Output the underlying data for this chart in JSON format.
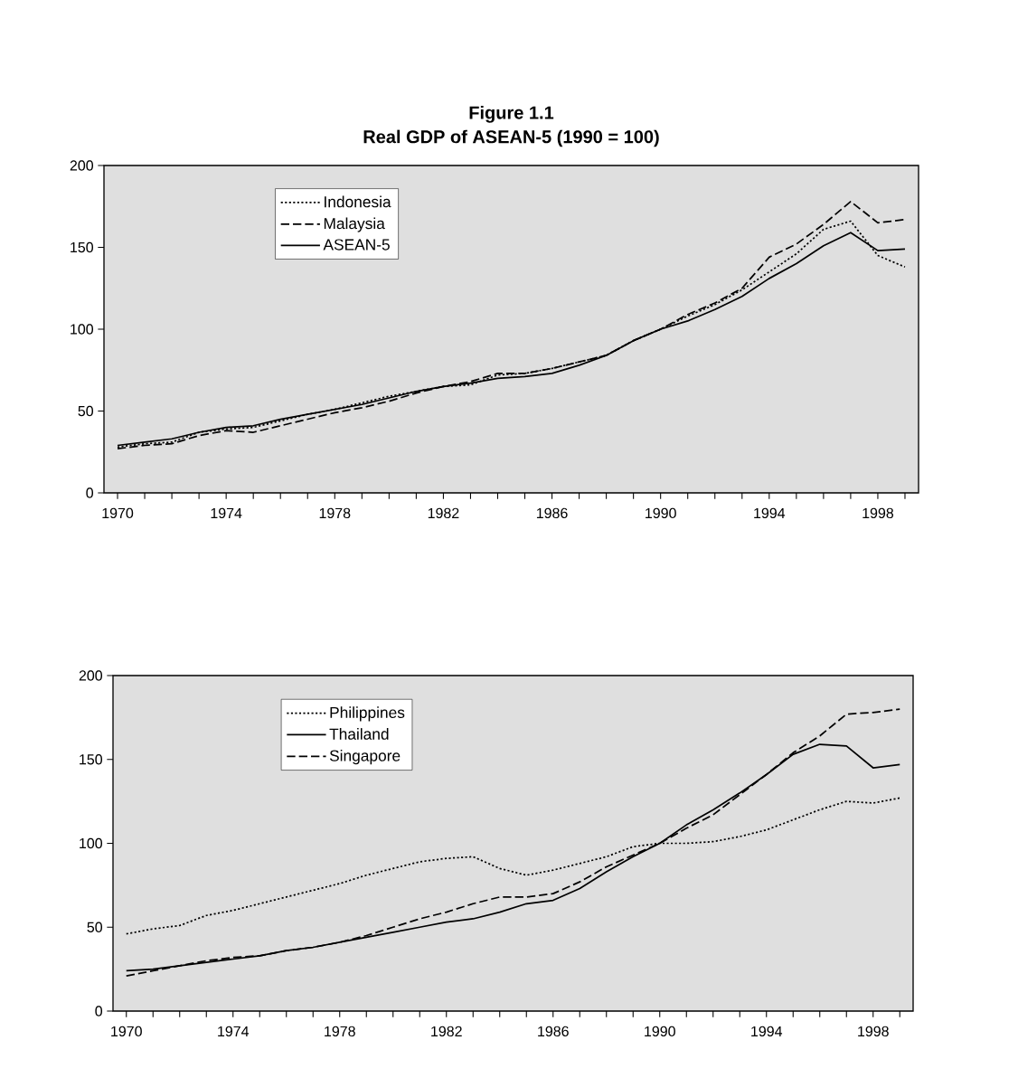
{
  "chart_data": [
    {
      "type": "line",
      "title": "Figure 1.1",
      "subtitle": "Real GDP of ASEAN-5 (1990 = 100)",
      "x": [
        1970,
        1971,
        1972,
        1973,
        1974,
        1975,
        1976,
        1977,
        1978,
        1979,
        1980,
        1981,
        1982,
        1983,
        1984,
        1985,
        1986,
        1987,
        1988,
        1989,
        1990,
        1991,
        1992,
        1993,
        1994,
        1995,
        1996,
        1997,
        1998,
        1999
      ],
      "series": [
        {
          "name": "Indonesia",
          "color": "#000000",
          "line_style": "dotted",
          "values": [
            28,
            30,
            31,
            37,
            39,
            40,
            44,
            48,
            51,
            55,
            59,
            62,
            65,
            66,
            72,
            73,
            76,
            80,
            84,
            93,
            100,
            108,
            115,
            124,
            135,
            146,
            161,
            166,
            145,
            138
          ]
        },
        {
          "name": "Malaysia",
          "color": "#000000",
          "line_style": "dashed",
          "values": [
            27,
            29,
            30,
            35,
            38,
            37,
            41,
            45,
            49,
            52,
            56,
            61,
            65,
            68,
            73,
            73,
            76,
            80,
            84,
            93,
            100,
            109,
            116,
            125,
            144,
            152,
            164,
            178,
            165,
            167
          ]
        },
        {
          "name": "ASEAN-5",
          "color": "#000000",
          "line_style": "solid",
          "values": [
            29,
            31,
            33,
            37,
            40,
            41,
            45,
            48,
            51,
            54,
            58,
            62,
            65,
            67,
            70,
            71,
            73,
            78,
            84,
            93,
            100,
            105,
            112,
            120,
            131,
            140,
            151,
            159,
            148,
            149
          ]
        }
      ],
      "xlim": [
        1969.5,
        1999.5
      ],
      "xticks": [
        {
          "value": 1970,
          "label": "1970"
        },
        {
          "value": 1971,
          "label": null
        },
        {
          "value": 1972,
          "label": null
        },
        {
          "value": 1973,
          "label": null
        },
        {
          "value": 1974,
          "label": "1974"
        },
        {
          "value": 1975,
          "label": null
        },
        {
          "value": 1976,
          "label": null
        },
        {
          "value": 1977,
          "label": null
        },
        {
          "value": 1978,
          "label": "1978"
        },
        {
          "value": 1979,
          "label": null
        },
        {
          "value": 1980,
          "label": null
        },
        {
          "value": 1981,
          "label": null
        },
        {
          "value": 1982,
          "label": "1982"
        },
        {
          "value": 1983,
          "label": null
        },
        {
          "value": 1984,
          "label": null
        },
        {
          "value": 1985,
          "label": null
        },
        {
          "value": 1986,
          "label": "1986"
        },
        {
          "value": 1987,
          "label": null
        },
        {
          "value": 1988,
          "label": null
        },
        {
          "value": 1989,
          "label": null
        },
        {
          "value": 1990,
          "label": "1990"
        },
        {
          "value": 1991,
          "label": null
        },
        {
          "value": 1992,
          "label": null
        },
        {
          "value": 1993,
          "label": null
        },
        {
          "value": 1994,
          "label": "1994"
        },
        {
          "value": 1995,
          "label": null
        },
        {
          "value": 1996,
          "label": null
        },
        {
          "value": 1997,
          "label": null
        },
        {
          "value": 1998,
          "label": "1998"
        },
        {
          "value": 1999,
          "label": null
        }
      ],
      "ylim": [
        0,
        200
      ],
      "yticks": [
        0,
        50,
        100,
        150,
        200
      ],
      "legend": "top left"
    },
    {
      "type": "line",
      "x": [
        1970,
        1971,
        1972,
        1973,
        1974,
        1975,
        1976,
        1977,
        1978,
        1979,
        1980,
        1981,
        1982,
        1983,
        1984,
        1985,
        1986,
        1987,
        1988,
        1989,
        1990,
        1991,
        1992,
        1993,
        1994,
        1995,
        1996,
        1997,
        1998,
        1999
      ],
      "series": [
        {
          "name": "Philippines",
          "color": "#000000",
          "line_style": "dotted",
          "values": [
            46,
            49,
            51,
            57,
            60,
            64,
            68,
            72,
            76,
            81,
            85,
            89,
            91,
            92,
            85,
            81,
            84,
            88,
            92,
            98,
            100,
            100,
            101,
            104,
            108,
            114,
            120,
            125,
            124,
            127
          ]
        },
        {
          "name": "Thailand",
          "color": "#000000",
          "line_style": "solid",
          "values": [
            24,
            25,
            27,
            29,
            31,
            33,
            36,
            38,
            41,
            44,
            47,
            50,
            53,
            55,
            59,
            64,
            66,
            73,
            83,
            92,
            100,
            111,
            120,
            130,
            141,
            153,
            159,
            158,
            145,
            147
          ]
        },
        {
          "name": "Singapore",
          "color": "#000000",
          "line_style": "dashed",
          "values": [
            21,
            24,
            27,
            30,
            32,
            33,
            36,
            38,
            41,
            45,
            50,
            55,
            59,
            64,
            68,
            68,
            70,
            77,
            86,
            93,
            100,
            109,
            117,
            129,
            141,
            154,
            164,
            177,
            178,
            180
          ]
        }
      ],
      "xlim": [
        1969.5,
        1999.5
      ],
      "xticks": [
        {
          "value": 1970,
          "label": "1970"
        },
        {
          "value": 1971,
          "label": null
        },
        {
          "value": 1972,
          "label": null
        },
        {
          "value": 1973,
          "label": null
        },
        {
          "value": 1974,
          "label": "1974"
        },
        {
          "value": 1975,
          "label": null
        },
        {
          "value": 1976,
          "label": null
        },
        {
          "value": 1977,
          "label": null
        },
        {
          "value": 1978,
          "label": "1978"
        },
        {
          "value": 1979,
          "label": null
        },
        {
          "value": 1980,
          "label": null
        },
        {
          "value": 1981,
          "label": null
        },
        {
          "value": 1982,
          "label": "1982"
        },
        {
          "value": 1983,
          "label": null
        },
        {
          "value": 1984,
          "label": null
        },
        {
          "value": 1985,
          "label": null
        },
        {
          "value": 1986,
          "label": "1986"
        },
        {
          "value": 1987,
          "label": null
        },
        {
          "value": 1988,
          "label": null
        },
        {
          "value": 1989,
          "label": null
        },
        {
          "value": 1990,
          "label": "1990"
        },
        {
          "value": 1991,
          "label": null
        },
        {
          "value": 1992,
          "label": null
        },
        {
          "value": 1993,
          "label": null
        },
        {
          "value": 1994,
          "label": "1994"
        },
        {
          "value": 1995,
          "label": null
        },
        {
          "value": 1996,
          "label": null
        },
        {
          "value": 1997,
          "label": null
        },
        {
          "value": 1998,
          "label": "1998"
        },
        {
          "value": 1999,
          "label": null
        }
      ],
      "ylim": [
        0,
        200
      ],
      "yticks": [
        0,
        50,
        100,
        150,
        200
      ],
      "legend": "top left"
    }
  ]
}
